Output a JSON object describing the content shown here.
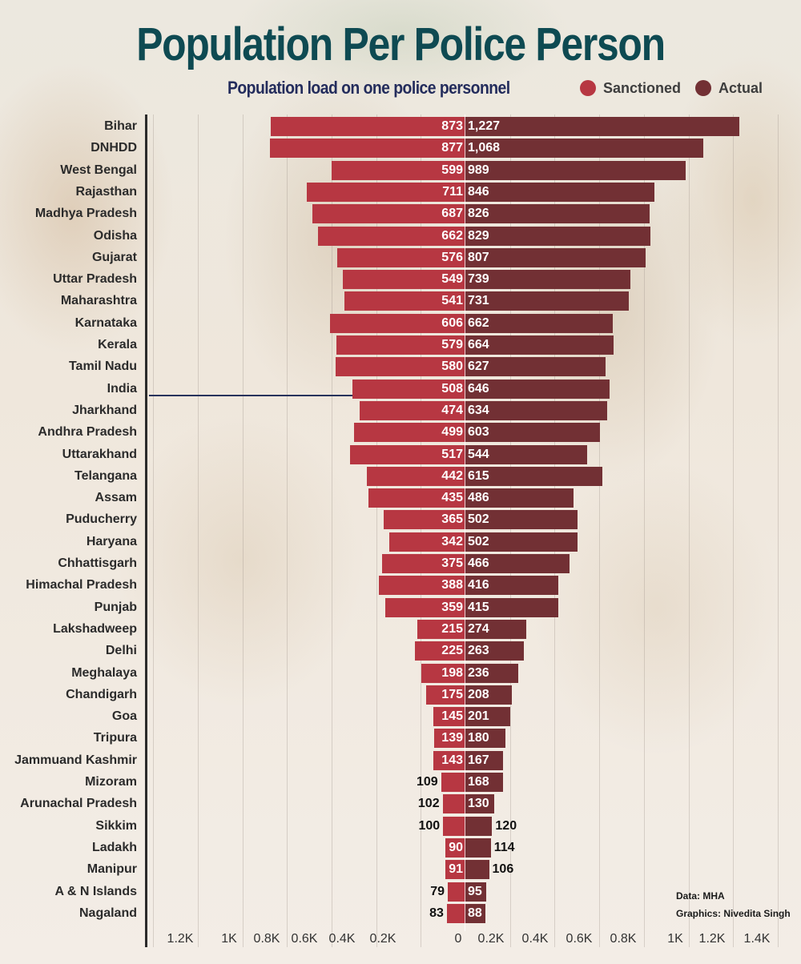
{
  "header": {
    "title": "Population Per Police Person",
    "subtitle": "Population load on one police personnel"
  },
  "legend": [
    {
      "label": "Sanctioned",
      "color": "#b73742"
    },
    {
      "label": "Actual",
      "color": "#723034"
    }
  ],
  "credits": {
    "data": "Data: MHA",
    "graphics": "Graphics: Nivedita Singh"
  },
  "chart_data": {
    "type": "bar",
    "orientation": "horizontal-diverging",
    "title": "Population Per Police Person",
    "subtitle": "Population load on one police personnel",
    "xlabel": "",
    "ylabel": "",
    "grid": true,
    "legend_position": "top-right",
    "highlight_category": "India",
    "xlim_left": [
      0,
      1400
    ],
    "xlim_right": [
      0,
      1400
    ],
    "tick_labels_left": [
      "1.2K",
      "1K",
      "0.8K",
      "0.6K",
      "0.4K",
      "0.2K"
    ],
    "tick_labels_right": [
      "0",
      "0.2K",
      "0.4K",
      "0.6K",
      "0.8K",
      "1K",
      "1.2K",
      "1.4K"
    ],
    "categories": [
      "Bihar",
      "DNHDD",
      "West Bengal",
      "Rajasthan",
      "Madhya Pradesh",
      "Odisha",
      "Gujarat",
      "Uttar Pradesh",
      "Maharashtra",
      "Karnataka",
      "Kerala",
      "Tamil Nadu",
      "India",
      "Jharkhand",
      "Andhra Pradesh",
      "Uttarakhand",
      "Telangana",
      "Assam",
      "Puducherry",
      "Haryana",
      "Chhattisgarh",
      "Himachal Pradesh",
      "Punjab",
      "Lakshadweep",
      "Delhi",
      "Meghalaya",
      "Chandigarh",
      "Goa",
      "Tripura",
      "Jammuand Kashmir",
      "Mizoram",
      "Arunachal Pradesh",
      "Sikkim",
      "Ladakh",
      "Manipur",
      "A & N Islands",
      "Nagaland"
    ],
    "series": [
      {
        "name": "Sanctioned",
        "side": "left",
        "color": "#b73742",
        "values": [
          873,
          877,
          599,
          711,
          687,
          662,
          576,
          549,
          541,
          606,
          579,
          580,
          508,
          474,
          499,
          517,
          442,
          435,
          365,
          342,
          375,
          388,
          359,
          215,
          225,
          198,
          175,
          145,
          139,
          143,
          109,
          102,
          100,
          90,
          91,
          79,
          83
        ],
        "labels": [
          "873",
          "877",
          "599",
          "711",
          "687",
          "662",
          "576",
          "549",
          "541",
          "606",
          "579",
          "580",
          "508",
          "474",
          "499",
          "517",
          "442",
          "435",
          "365",
          "342",
          "375",
          "388",
          "359",
          "215",
          "225",
          "198",
          "175",
          "145",
          "139",
          "143",
          "109",
          "102",
          "100",
          "90",
          "91",
          "79",
          "83"
        ]
      },
      {
        "name": "Actual",
        "side": "right",
        "color": "#723034",
        "values": [
          1227,
          1068,
          989,
          846,
          826,
          829,
          807,
          739,
          731,
          662,
          664,
          627,
          646,
          634,
          603,
          544,
          615,
          486,
          502,
          502,
          466,
          416,
          415,
          274,
          263,
          236,
          208,
          201,
          180,
          167,
          168,
          130,
          120,
          114,
          106,
          95,
          88
        ],
        "labels": [
          "1,227",
          "1,068",
          "989",
          "846",
          "826",
          "829",
          "807",
          "739",
          "731",
          "662",
          "664",
          "627",
          "646",
          "634",
          "603",
          "544",
          "615",
          "486",
          "502",
          "502",
          "466",
          "416",
          "415",
          "274",
          "263",
          "236",
          "208",
          "201",
          "180",
          "167",
          "168",
          "130",
          "120",
          "114",
          "106",
          "95",
          "88"
        ]
      }
    ]
  }
}
